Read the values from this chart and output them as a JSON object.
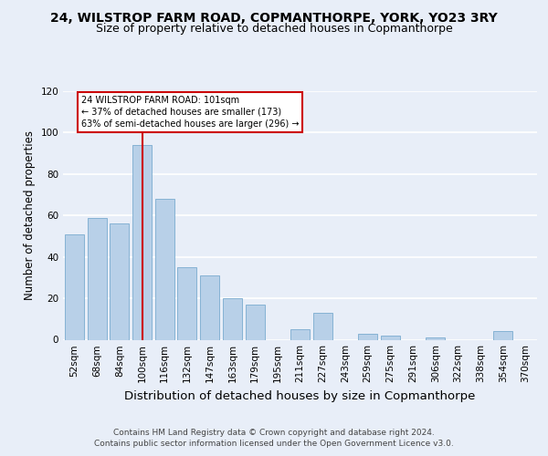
{
  "title1": "24, WILSTROP FARM ROAD, COPMANTHORPE, YORK, YO23 3RY",
  "title2": "Size of property relative to detached houses in Copmanthorpe",
  "xlabel": "Distribution of detached houses by size in Copmanthorpe",
  "ylabel": "Number of detached properties",
  "categories": [
    "52sqm",
    "68sqm",
    "84sqm",
    "100sqm",
    "116sqm",
    "132sqm",
    "147sqm",
    "163sqm",
    "179sqm",
    "195sqm",
    "211sqm",
    "227sqm",
    "243sqm",
    "259sqm",
    "275sqm",
    "291sqm",
    "306sqm",
    "322sqm",
    "338sqm",
    "354sqm",
    "370sqm"
  ],
  "values": [
    51,
    59,
    56,
    94,
    68,
    35,
    31,
    20,
    17,
    0,
    5,
    13,
    0,
    3,
    2,
    0,
    1,
    0,
    0,
    4,
    0
  ],
  "bar_color": "#b8d0e8",
  "bar_edge_color": "#7aabcf",
  "vline_x": 3,
  "vline_color": "#cc0000",
  "annotation_text": "24 WILSTROP FARM ROAD: 101sqm\n← 37% of detached houses are smaller (173)\n63% of semi-detached houses are larger (296) →",
  "annotation_box_color": "#ffffff",
  "annotation_box_edge": "#cc0000",
  "ylim": [
    0,
    120
  ],
  "yticks": [
    0,
    20,
    40,
    60,
    80,
    100,
    120
  ],
  "footer": "Contains HM Land Registry data © Crown copyright and database right 2024.\nContains public sector information licensed under the Open Government Licence v3.0.",
  "bg_color": "#e8eef8",
  "plot_bg_color": "#e8eef8",
  "grid_color": "#ffffff",
  "title1_fontsize": 10,
  "title2_fontsize": 9,
  "xlabel_fontsize": 9.5,
  "ylabel_fontsize": 8.5,
  "tick_fontsize": 7.5,
  "footer_fontsize": 6.5
}
